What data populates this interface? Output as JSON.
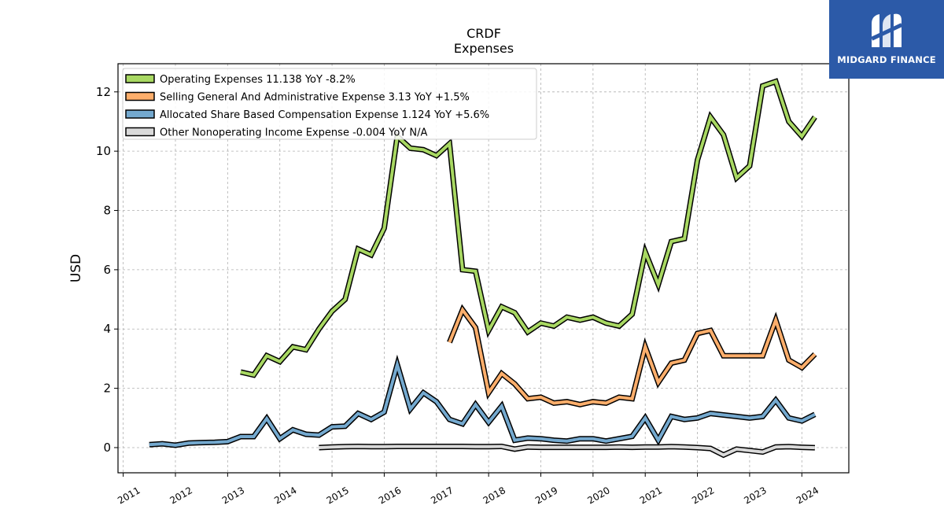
{
  "brand": {
    "name": "MIDGARD FINANCE",
    "bg_color": "#2c5aa8"
  },
  "chart_data": {
    "type": "line",
    "title": "CRDF",
    "subtitle": "Expenses",
    "ylabel": "USD",
    "xlabel": "",
    "xlim": [
      2010.9,
      2024.9
    ],
    "ylim": [
      -0.85,
      12.95
    ],
    "yticks": [
      0,
      2,
      4,
      6,
      8,
      10,
      12
    ],
    "xticks": [
      2011,
      2012,
      2013,
      2014,
      2015,
      2016,
      2017,
      2018,
      2019,
      2020,
      2021,
      2022,
      2023,
      2024
    ],
    "grid": true,
    "legend_position": "top-left",
    "series": [
      {
        "name": "Operating Expenses",
        "legend": "Operating Expenses  11.138 YoY -8.2%",
        "color": "#a8d862",
        "x": [
          2013.25,
          2013.5,
          2013.75,
          2014.0,
          2014.25,
          2014.5,
          2014.75,
          2015.0,
          2015.25,
          2015.5,
          2015.75,
          2016.0,
          2016.25,
          2016.5,
          2016.75,
          2017.0,
          2017.25,
          2017.5,
          2017.75,
          2018.0,
          2018.25,
          2018.5,
          2018.75,
          2019.0,
          2019.25,
          2019.5,
          2019.75,
          2020.0,
          2020.25,
          2020.5,
          2020.75,
          2021.0,
          2021.25,
          2021.5,
          2021.75,
          2022.0,
          2022.25,
          2022.5,
          2022.75,
          2023.0,
          2023.25,
          2023.5,
          2023.75,
          2024.0,
          2024.25
        ],
        "y": [
          2.55,
          2.45,
          3.1,
          2.9,
          3.4,
          3.3,
          4.0,
          4.6,
          5.0,
          6.7,
          6.5,
          7.4,
          10.5,
          10.1,
          10.05,
          9.85,
          10.25,
          6.0,
          5.95,
          3.95,
          4.75,
          4.55,
          3.9,
          4.2,
          4.1,
          4.4,
          4.3,
          4.4,
          4.2,
          4.1,
          4.5,
          6.6,
          5.5,
          6.95,
          7.05,
          9.7,
          11.15,
          10.55,
          9.1,
          9.5,
          12.2,
          12.35,
          11.0,
          10.5,
          11.15
        ]
      },
      {
        "name": "Selling General And Administrative Expense",
        "legend": "Selling General And Administrative Expense  3.13 YoY +1.5%",
        "color": "#fdae6b",
        "x": [
          2017.25,
          2017.5,
          2017.75,
          2018.0,
          2018.25,
          2018.5,
          2018.75,
          2019.0,
          2019.25,
          2019.5,
          2019.75,
          2020.0,
          2020.25,
          2020.5,
          2020.75,
          2021.0,
          2021.25,
          2021.5,
          2021.75,
          2022.0,
          2022.25,
          2022.5,
          2022.75,
          2023.0,
          2023.25,
          2023.5,
          2023.75,
          2024.0,
          2024.25
        ],
        "y": [
          3.55,
          4.65,
          4.05,
          1.85,
          2.5,
          2.15,
          1.65,
          1.7,
          1.5,
          1.55,
          1.45,
          1.55,
          1.5,
          1.7,
          1.65,
          3.4,
          2.2,
          2.85,
          2.95,
          3.85,
          3.95,
          3.1,
          3.1,
          3.1,
          3.1,
          4.3,
          2.95,
          2.7,
          3.15
        ]
      },
      {
        "name": "Allocated Share Based Compensation Expense",
        "legend": "Allocated Share Based Compensation Expense  1.124 YoY +5.6%",
        "color": "#74a9cf",
        "x": [
          2011.5,
          2011.75,
          2012.0,
          2012.25,
          2012.5,
          2012.75,
          2013.0,
          2013.25,
          2013.5,
          2013.75,
          2014.0,
          2014.25,
          2014.5,
          2014.75,
          2015.0,
          2015.25,
          2015.5,
          2015.75,
          2016.0,
          2016.25,
          2016.5,
          2016.75,
          2017.0,
          2017.25,
          2017.5,
          2017.75,
          2018.0,
          2018.25,
          2018.5,
          2018.75,
          2019.0,
          2019.25,
          2019.5,
          2019.75,
          2020.0,
          2020.25,
          2020.5,
          2020.75,
          2021.0,
          2021.25,
          2021.5,
          2021.75,
          2022.0,
          2022.25,
          2022.5,
          2022.75,
          2023.0,
          2023.25,
          2023.5,
          2023.75,
          2024.0,
          2024.25
        ],
        "y": [
          0.1,
          0.13,
          0.08,
          0.15,
          0.17,
          0.18,
          0.2,
          0.37,
          0.37,
          0.98,
          0.3,
          0.6,
          0.45,
          0.42,
          0.7,
          0.72,
          1.15,
          0.95,
          1.2,
          2.8,
          1.3,
          1.85,
          1.55,
          0.95,
          0.8,
          1.45,
          0.85,
          1.4,
          0.25,
          0.32,
          0.3,
          0.25,
          0.22,
          0.3,
          0.3,
          0.22,
          0.3,
          0.38,
          1.0,
          0.25,
          1.05,
          0.95,
          1.0,
          1.15,
          1.1,
          1.05,
          1.0,
          1.05,
          1.6,
          1.0,
          0.9,
          1.12
        ]
      },
      {
        "name": "Other Nonoperating Income Expense",
        "legend": "Other Nonoperating Income Expense  -0.004 YoY N/A",
        "color": "#d9d9d9",
        "x": [
          2014.75,
          2015.0,
          2015.25,
          2015.5,
          2015.75,
          2016.0,
          2016.25,
          2016.5,
          2016.75,
          2017.0,
          2017.25,
          2017.5,
          2017.75,
          2018.0,
          2018.25,
          2018.5,
          2018.75,
          2019.0,
          2019.25,
          2019.5,
          2019.75,
          2020.0,
          2020.25,
          2020.5,
          2020.75,
          2021.0,
          2021.25,
          2021.5,
          2021.75,
          2022.0,
          2022.25,
          2022.5,
          2022.75,
          2023.0,
          2023.25,
          2023.5,
          2023.75,
          2024.0,
          2024.25
        ],
        "y": [
          0.0,
          0.02,
          0.03,
          0.04,
          0.03,
          0.03,
          0.04,
          0.04,
          0.04,
          0.04,
          0.04,
          0.04,
          0.03,
          0.03,
          0.04,
          -0.05,
          0.02,
          0.01,
          0.01,
          0.01,
          0.01,
          0.01,
          0.01,
          0.02,
          0.01,
          0.02,
          0.02,
          0.03,
          0.02,
          0.0,
          -0.03,
          -0.25,
          -0.05,
          -0.1,
          -0.15,
          0.02,
          0.03,
          0.01,
          -0.004
        ]
      }
    ]
  }
}
